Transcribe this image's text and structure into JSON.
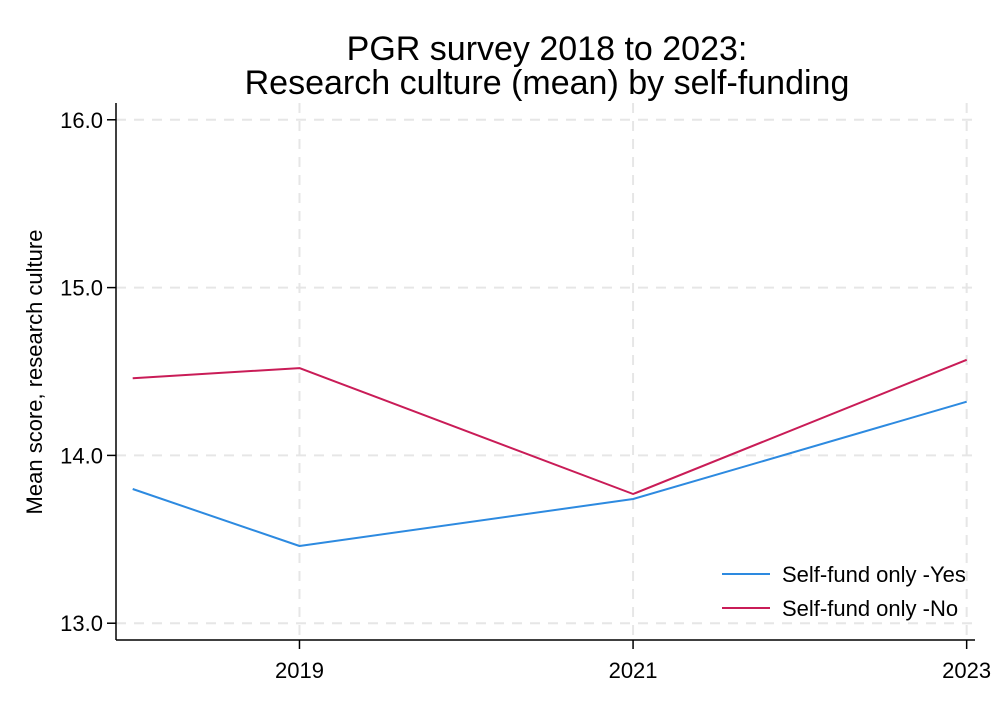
{
  "chart_data": {
    "type": "line",
    "title": [
      "PGR survey 2018 to 2023:",
      "Research culture (mean) by self-funding"
    ],
    "xlabel": "",
    "ylabel": "Mean score, research culture",
    "x": [
      2018,
      2019,
      2021,
      2023
    ],
    "xticks": [
      2019,
      2021,
      2023
    ],
    "xlim": [
      2017.9,
      2023.05
    ],
    "yticks": [
      "13.0",
      "14.0",
      "15.0",
      "16.0"
    ],
    "ylim": [
      12.9,
      16.1
    ],
    "grid": true,
    "legend_position": "bottom-right",
    "series": [
      {
        "name": "Self-fund only -Yes",
        "color": "#2d8ae0",
        "values": [
          13.8,
          13.46,
          13.74,
          14.32
        ]
      },
      {
        "name": "Self-fund only -No",
        "color": "#c91c57",
        "values": [
          14.46,
          14.52,
          13.77,
          14.57
        ]
      }
    ]
  }
}
